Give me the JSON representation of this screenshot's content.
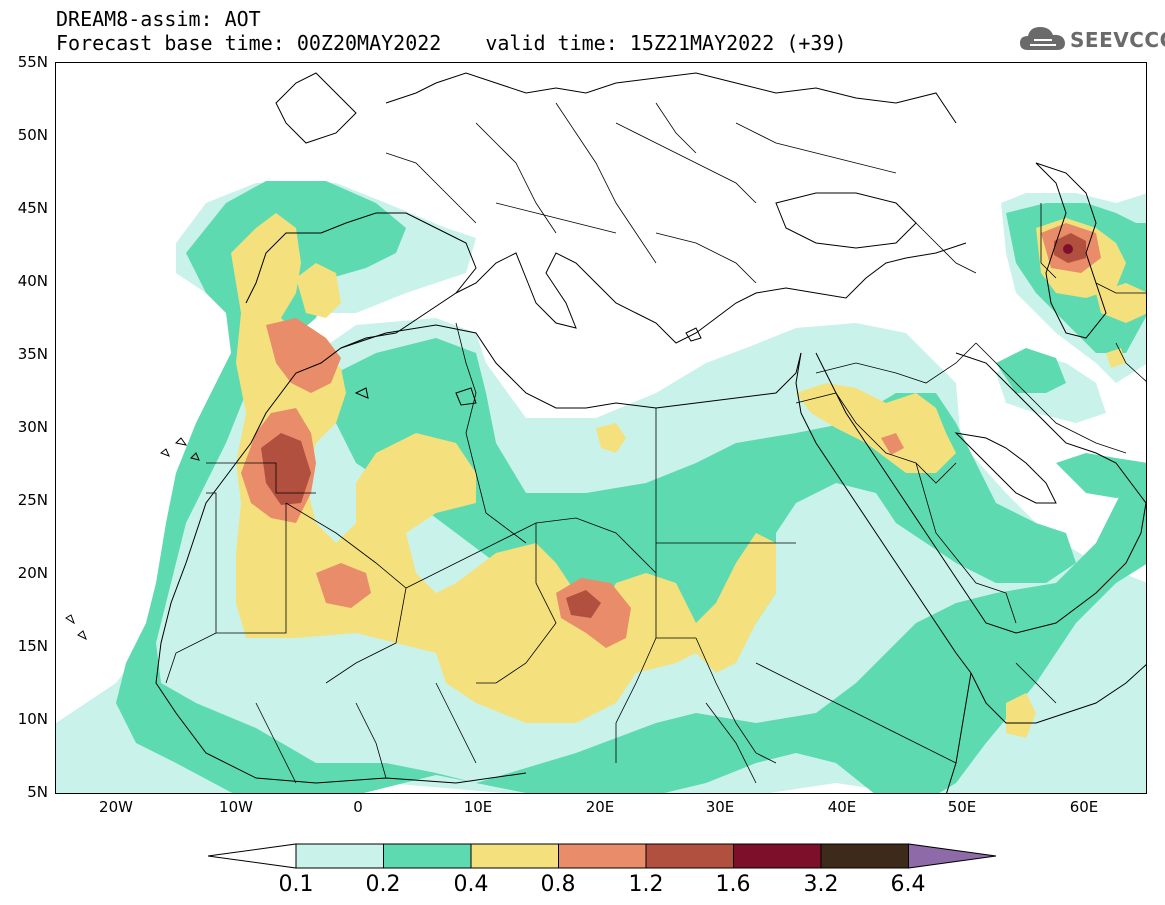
{
  "title": {
    "line1": "DREAM8-assim: AOT",
    "base_time": "Forecast base time: 00Z20MAY2022",
    "valid_time": "valid time: 15Z21MAY2022 (+39)"
  },
  "logo": {
    "text": "SEEVCCC",
    "icon": "cloud-icon"
  },
  "axes": {
    "lat_labels": [
      "55N",
      "50N",
      "45N",
      "40N",
      "35N",
      "30N",
      "25N",
      "20N",
      "15N",
      "10N",
      "5N"
    ],
    "lon_labels": [
      "20W",
      "10W",
      "0",
      "10E",
      "20E",
      "30E",
      "40E",
      "50E",
      "60E"
    ]
  },
  "colorbar": {
    "levels": [
      "0.1",
      "0.2",
      "0.4",
      "0.8",
      "1.2",
      "1.6",
      "3.2",
      "6.4"
    ],
    "colors": [
      "#c9f2ea",
      "#5ddab0",
      "#f4e17e",
      "#e88c6a",
      "#b2503f",
      "#7d0f2a",
      "#3d2a1a"
    ],
    "under_color": "#ffffff",
    "over_color": "#8e6aa8"
  },
  "map_colors": {
    "c1": "#c9f2ea",
    "c2": "#5ddab0",
    "c3": "#f4e17e",
    "c4": "#e88c6a",
    "c5": "#b2503f",
    "c6": "#7d0f2a"
  }
}
